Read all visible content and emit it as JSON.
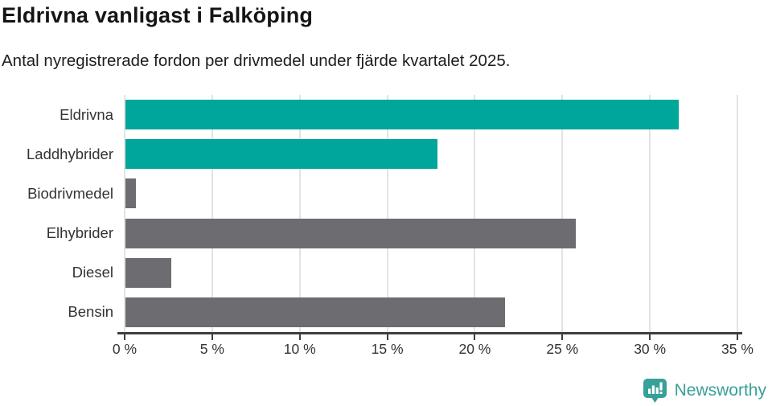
{
  "header": {
    "title": "Eldrivna vanligast i Falköping",
    "subtitle": "Antal nyregistrerade fordon per drivmedel under fjärde kvartalet 2025."
  },
  "chart_data": {
    "type": "bar",
    "orientation": "horizontal",
    "title": "Eldrivna vanligast i Falköping",
    "subtitle": "Antal nyregistrerade fordon per drivmedel under fjärde kvartalet 2025.",
    "categories": [
      "Eldrivna",
      "Laddhybrider",
      "Biodrivmedel",
      "Elhybrider",
      "Diesel",
      "Bensin"
    ],
    "values": [
      31.6,
      17.8,
      0.6,
      25.7,
      2.6,
      21.7
    ],
    "unit": "%",
    "xlabel": "",
    "ylabel": "",
    "xlim": [
      0,
      35
    ],
    "x_ticks": [
      {
        "value": 0,
        "label": "0 %"
      },
      {
        "value": 5,
        "label": "5 %"
      },
      {
        "value": 10,
        "label": "10 %"
      },
      {
        "value": 15,
        "label": "15 %"
      },
      {
        "value": 20,
        "label": "20 %"
      },
      {
        "value": 25,
        "label": "25 %"
      },
      {
        "value": 30,
        "label": "30 %"
      },
      {
        "value": 35,
        "label": "35 %"
      }
    ],
    "bar_colors": [
      "#00A699",
      "#00A699",
      "#6C6C71",
      "#6C6C71",
      "#6C6C71",
      "#6C6C71"
    ],
    "grid": true,
    "legend": false
  },
  "branding": {
    "name": "Newsworthy",
    "logo_icon": "newsworthy-speech-bubble-chart-icon"
  },
  "colors": {
    "highlight_bar": "#00A699",
    "default_bar": "#6C6C71",
    "gridline": "#E3E3E3",
    "axis": "#3F3F3F",
    "tick_text": "#333333",
    "brand": "#37A098",
    "background": "#FFFFFF"
  }
}
